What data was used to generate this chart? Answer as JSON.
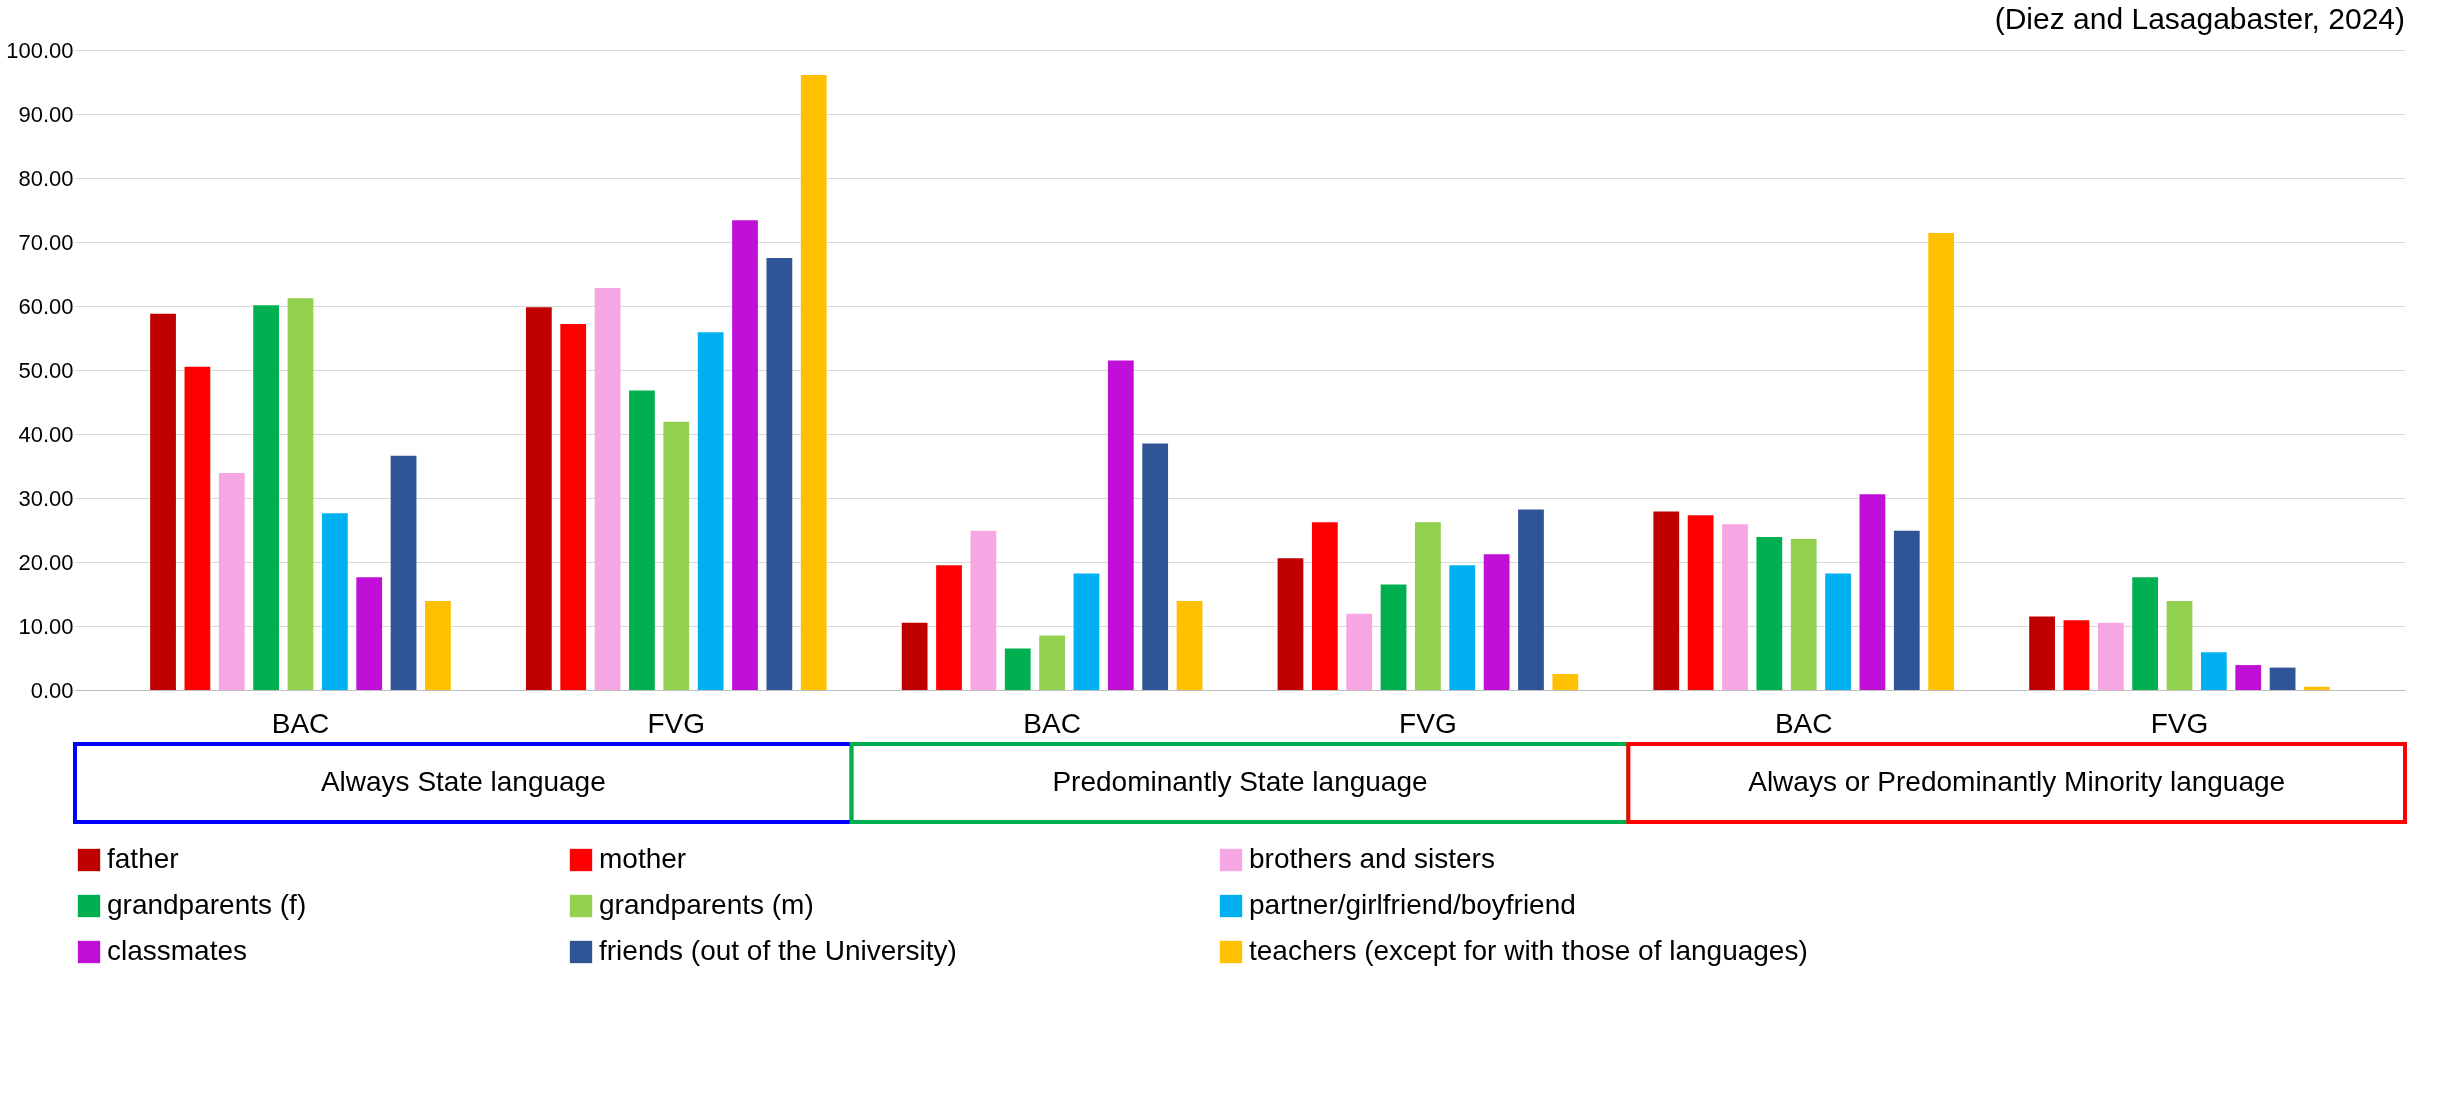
{
  "chart_data": {
    "type": "bar",
    "categories": [
      "BAC",
      "FVG",
      "BAC",
      "FVG",
      "BAC",
      "FVG"
    ],
    "series": [
      {
        "name": "father",
        "color": "#c00000",
        "values": [
          58.8,
          59.8,
          10.5,
          20.6,
          27.9,
          11.5
        ]
      },
      {
        "name": "mother",
        "color": "#ff0000",
        "values": [
          50.5,
          57.2,
          19.5,
          26.2,
          27.3,
          10.9
        ]
      },
      {
        "name": "brothers and sisters",
        "color": "#f7a6e4",
        "values": [
          33.9,
          62.8,
          24.9,
          11.9,
          25.9,
          10.5
        ]
      },
      {
        "name": "grandparents (f)",
        "color": "#00b050",
        "values": [
          60.1,
          46.8,
          6.5,
          16.5,
          23.9,
          17.6
        ]
      },
      {
        "name": "grandparents (m)",
        "color": "#92d050",
        "values": [
          61.2,
          41.9,
          8.5,
          26.2,
          23.6,
          13.9
        ]
      },
      {
        "name": "partner/girlfriend/boyfriend",
        "color": "#00b0f0",
        "values": [
          27.6,
          55.9,
          18.2,
          19.5,
          18.2,
          5.9
        ]
      },
      {
        "name": "classmates",
        "color": "#c010d8",
        "values": [
          17.6,
          73.4,
          51.5,
          21.2,
          30.6,
          3.9
        ]
      },
      {
        "name": "friends (out of the University)",
        "color": "#2f5597",
        "values": [
          36.6,
          67.5,
          38.5,
          28.2,
          24.9,
          3.5
        ]
      },
      {
        "name": "teachers (except for with those of languages)",
        "color": "#ffc000",
        "values": [
          13.9,
          96.1,
          13.9,
          2.5,
          71.4,
          0.5
        ]
      }
    ],
    "ylim": [
      0,
      100
    ],
    "yticks": [
      {
        "value": 0,
        "label": "0.00"
      },
      {
        "value": 10,
        "label": "10.00"
      },
      {
        "value": 20,
        "label": "20.00"
      },
      {
        "value": 30,
        "label": "30.00"
      },
      {
        "value": 40,
        "label": "40.00"
      },
      {
        "value": 50,
        "label": "50.00"
      },
      {
        "value": 60,
        "label": "60.00"
      },
      {
        "value": 70,
        "label": "70.00"
      },
      {
        "value": 80,
        "label": "80.00"
      },
      {
        "value": 90,
        "label": "90.00"
      },
      {
        "value": 100,
        "label": "100.00"
      }
    ],
    "grid": "y",
    "legend": "bottom",
    "annotations": [
      "Always State language",
      "Predominantly State language",
      "Always or Predominantly Minority language",
      "(Diez and Lasagabaster, 2024)"
    ]
  }
}
